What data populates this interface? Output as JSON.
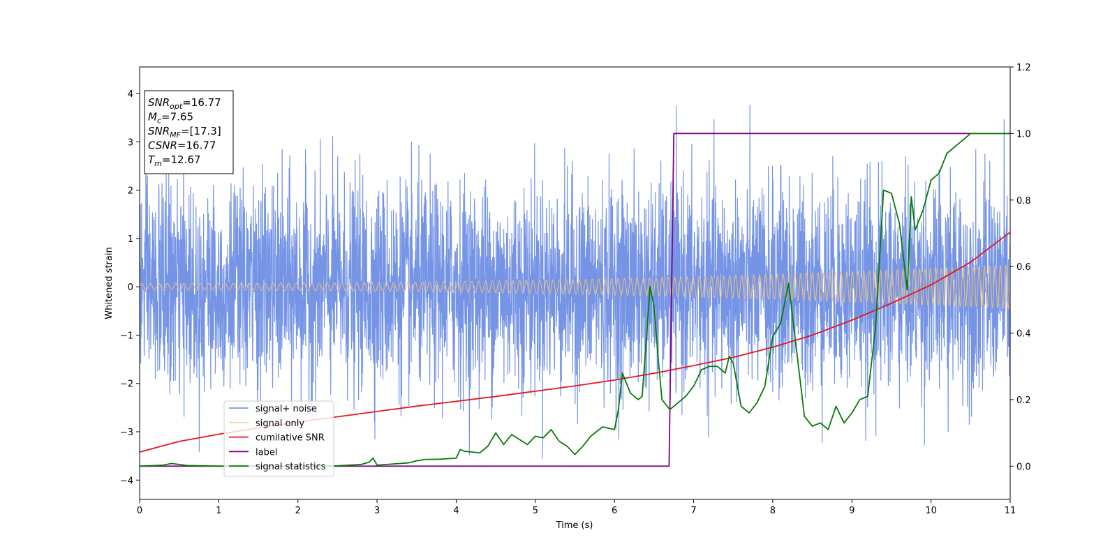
{
  "chart_data": {
    "type": "line",
    "xlabel": "Time (s)",
    "ylabel": "Whitened strain",
    "xlim": [
      0,
      11
    ],
    "ylim_left": [
      -4.4,
      4.55
    ],
    "ylim_right": [
      -0.1,
      1.2
    ],
    "x_ticks": [
      0,
      1,
      2,
      3,
      4,
      5,
      6,
      7,
      8,
      9,
      10,
      11
    ],
    "y_ticks_left": [
      -4,
      -3,
      -2,
      -1,
      0,
      1,
      2,
      3,
      4
    ],
    "y_ticks_left_labels": [
      "−4",
      "−3",
      "−2",
      "−1",
      "0",
      "1",
      "2",
      "3",
      "4"
    ],
    "y_ticks_right": [
      0.0,
      0.2,
      0.4,
      0.6,
      0.8,
      1.0,
      1.2
    ],
    "y_ticks_right_labels": [
      "0.0",
      "0.2",
      "0.4",
      "0.6",
      "0.8",
      "1.0",
      "1.2"
    ],
    "grid": false,
    "legend_position": "lower-left",
    "stats_box": {
      "lines": [
        {
          "main": "SNR",
          "sub": "opt",
          "rest": "=16.77"
        },
        {
          "main": "M",
          "sub": "c",
          "rest": "=7.65"
        },
        {
          "main": "SNR",
          "sub": "MF",
          "rest": "=[17.3]"
        },
        {
          "main": "CSNR",
          "sub": "",
          "rest": "=16.77"
        },
        {
          "main": "T",
          "sub": "m",
          "rest": "=12.67"
        }
      ]
    },
    "series": [
      {
        "name": "signal+ noise",
        "axis": "left",
        "color": "#7594e6",
        "kind": "noise",
        "amplitude_std": 1.05,
        "peak_range": [
          -3.95,
          3.98
        ]
      },
      {
        "name": "signal only",
        "axis": "left",
        "color": "#f3c07a",
        "kind": "chirp",
        "amplitude_start": 0.07,
        "amplitude_end": 0.45
      },
      {
        "name": "cumilative SNR",
        "axis": "left",
        "color": "#e8141b",
        "x": [
          0,
          0.5,
          1,
          1.5,
          2,
          2.5,
          3,
          3.5,
          4,
          4.5,
          5,
          5.5,
          6,
          6.5,
          7,
          7.5,
          8,
          8.5,
          9,
          9.5,
          10,
          10.5,
          11
        ],
        "y": [
          -3.42,
          -3.2,
          -3.05,
          -2.92,
          -2.8,
          -2.69,
          -2.58,
          -2.47,
          -2.37,
          -2.27,
          -2.16,
          -2.05,
          -1.93,
          -1.79,
          -1.63,
          -1.46,
          -1.25,
          -1.0,
          -0.69,
          -0.34,
          0.04,
          0.51,
          1.13
        ]
      },
      {
        "name": "label",
        "axis": "right",
        "color": "#800080",
        "x": [
          0,
          6.69,
          6.75,
          11
        ],
        "y": [
          0.0,
          0.0,
          1.0,
          1.0
        ]
      },
      {
        "name": "signal statistics",
        "axis": "right",
        "color": "#067a06",
        "x": [
          0,
          0.3,
          0.4,
          0.6,
          1.0,
          1.5,
          2.0,
          2.5,
          2.8,
          2.9,
          2.95,
          3.0,
          3.4,
          3.5,
          3.6,
          3.8,
          4.0,
          4.05,
          4.1,
          4.3,
          4.4,
          4.5,
          4.6,
          4.7,
          4.8,
          4.9,
          5.0,
          5.1,
          5.2,
          5.3,
          5.4,
          5.5,
          5.6,
          5.7,
          5.85,
          6.0,
          6.05,
          6.1,
          6.2,
          6.3,
          6.35,
          6.45,
          6.5,
          6.55,
          6.6,
          6.7,
          6.8,
          6.9,
          7.0,
          7.1,
          7.2,
          7.3,
          7.4,
          7.45,
          7.5,
          7.6,
          7.7,
          7.8,
          7.9,
          8.0,
          8.1,
          8.2,
          8.3,
          8.4,
          8.5,
          8.6,
          8.7,
          8.8,
          8.9,
          9.0,
          9.1,
          9.2,
          9.3,
          9.4,
          9.5,
          9.6,
          9.7,
          9.75,
          9.8,
          9.9,
          10.0,
          10.1,
          10.2,
          10.3,
          10.5,
          11.0
        ],
        "y": [
          0.0,
          0.003,
          0.008,
          0.002,
          0.0,
          0.0,
          0.0,
          0.001,
          0.005,
          0.012,
          0.024,
          0.003,
          0.01,
          0.016,
          0.02,
          0.021,
          0.024,
          0.05,
          0.045,
          0.04,
          0.06,
          0.1,
          0.065,
          0.095,
          0.08,
          0.065,
          0.09,
          0.085,
          0.11,
          0.075,
          0.06,
          0.035,
          0.06,
          0.09,
          0.118,
          0.11,
          0.17,
          0.28,
          0.22,
          0.2,
          0.21,
          0.54,
          0.48,
          0.33,
          0.2,
          0.17,
          0.19,
          0.21,
          0.24,
          0.29,
          0.3,
          0.3,
          0.28,
          0.33,
          0.31,
          0.18,
          0.16,
          0.19,
          0.24,
          0.39,
          0.43,
          0.55,
          0.35,
          0.15,
          0.12,
          0.13,
          0.11,
          0.18,
          0.13,
          0.16,
          0.2,
          0.21,
          0.42,
          0.83,
          0.82,
          0.73,
          0.53,
          0.81,
          0.71,
          0.77,
          0.86,
          0.88,
          0.94,
          0.96,
          1.0,
          1.0
        ]
      }
    ]
  }
}
